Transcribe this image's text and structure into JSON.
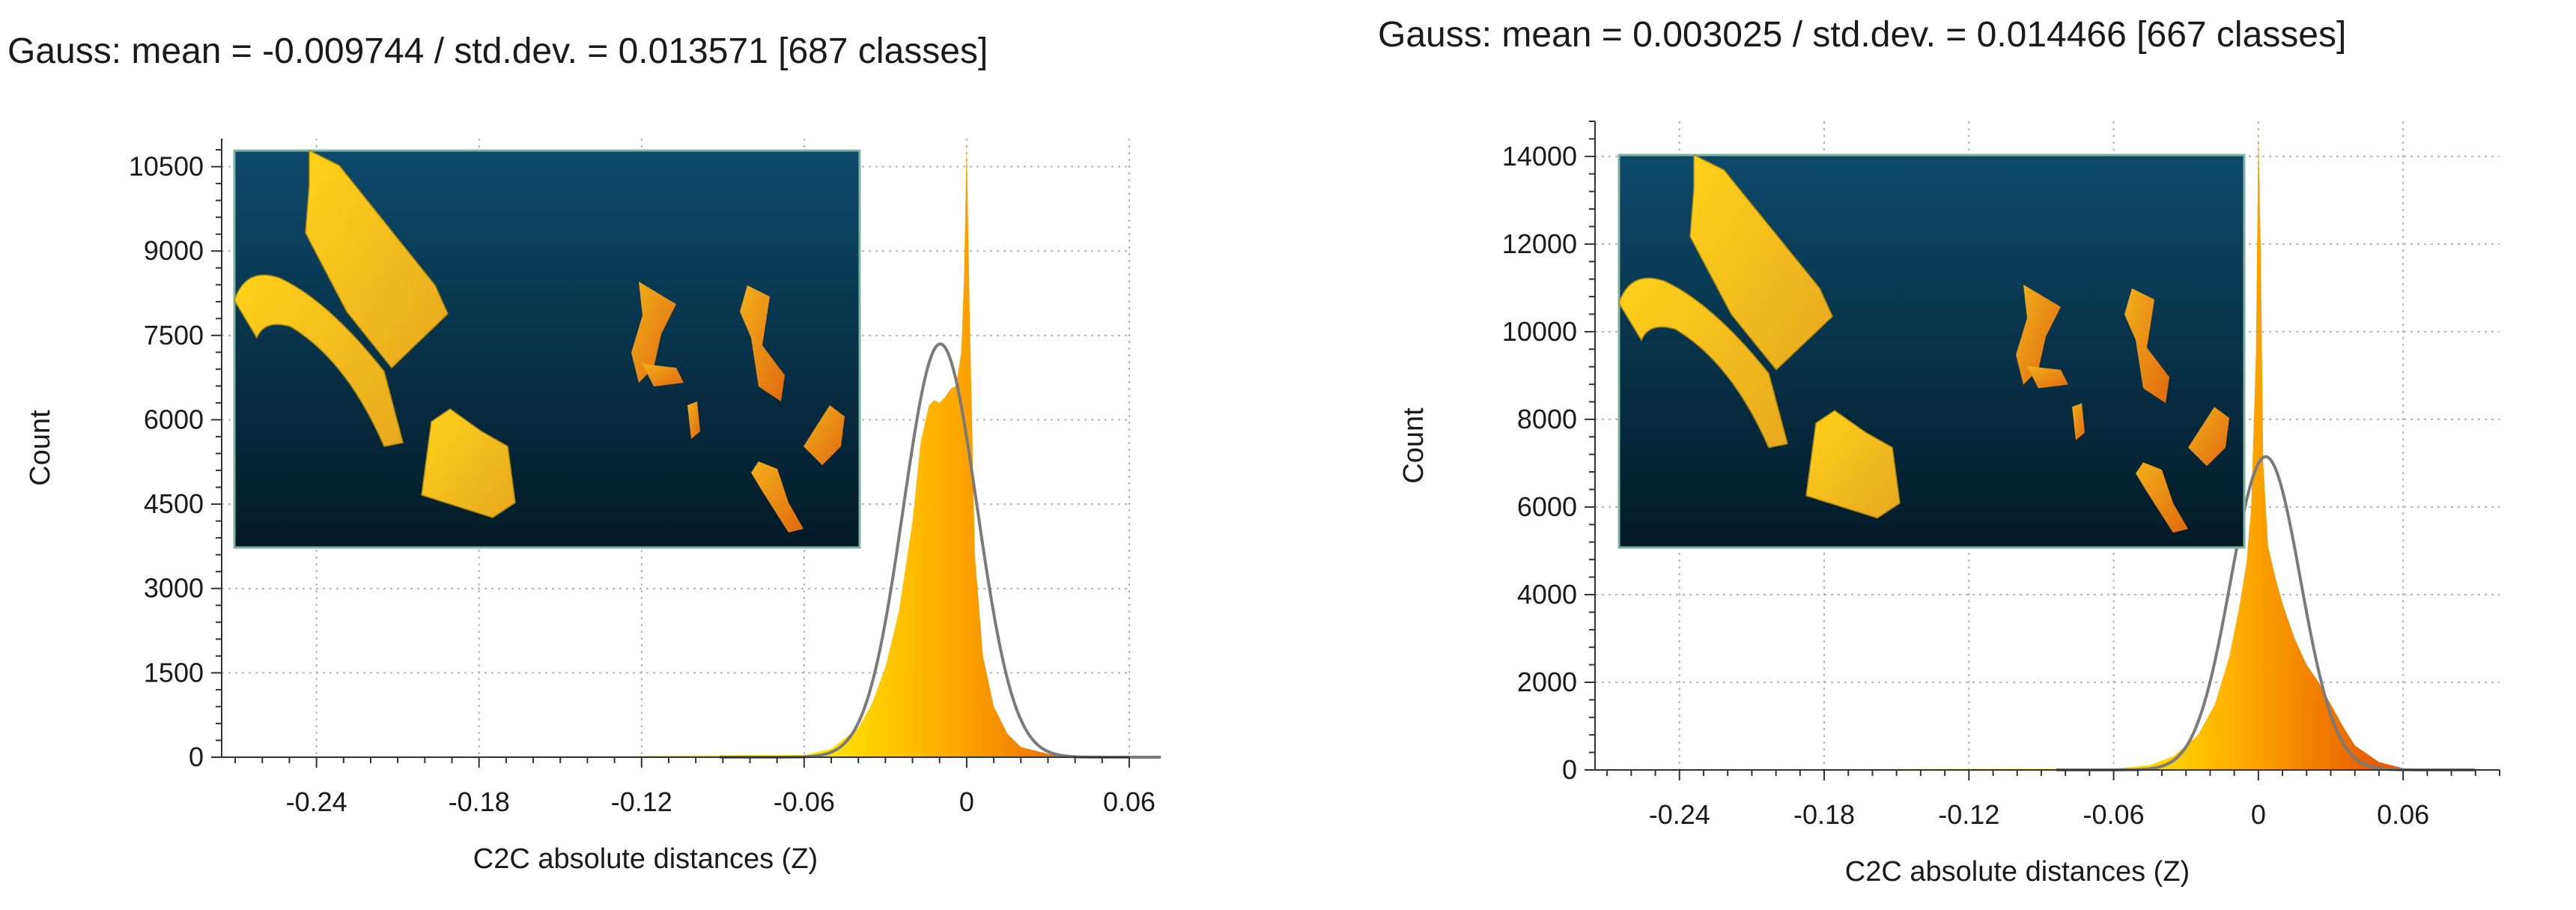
{
  "colors": {
    "background": "#ffffff",
    "grid": "#b4b4b4",
    "axis": "#333333",
    "gauss_curve": "#7a7a7a",
    "histogram_low": "#ffee00",
    "histogram_mid": "#ffb000",
    "histogram_high": "#e65a00",
    "inset_bg_top": "#0d4a6b",
    "inset_bg_bottom": "#031a26",
    "inset_frame": "#7fb3a0",
    "inset_shapes": "#f2c11a"
  },
  "chart_data": [
    {
      "type": "area",
      "title": "Gauss: mean = -0.009744 / std.dev. = 0.013571 [687 classes]",
      "xlabel": "C2C absolute distances (Z)",
      "ylabel": "Count",
      "xlim": [
        -0.275,
        0.06
      ],
      "ylim": [
        0,
        11000
      ],
      "xticks": [
        -0.24,
        -0.18,
        -0.12,
        -0.06,
        0,
        0.06
      ],
      "xtick_labels": [
        "-0.24",
        "-0.18",
        "-0.12",
        "-0.06",
        "0",
        "0.06"
      ],
      "yticks": [
        0,
        1500,
        3000,
        4500,
        6000,
        7500,
        9000,
        10500
      ],
      "ytick_labels": [
        "0",
        "1500",
        "3000",
        "4500",
        "6000",
        "7500",
        "9000",
        "10500"
      ],
      "grid": true,
      "inset_image": "point cloud thumbnail",
      "series": [
        {
          "x": [
            -0.275,
            -0.06,
            -0.05,
            -0.04,
            -0.035,
            -0.03,
            -0.025,
            -0.02,
            -0.017,
            -0.014,
            -0.012,
            -0.01,
            -0.008,
            -0.006,
            -0.004,
            -0.002,
            -0.001,
            0,
            0.001,
            0.003,
            0.006,
            0.01,
            0.015,
            0.02,
            0.03,
            0.04,
            0.06
          ],
          "y": [
            0,
            40,
            150,
            520,
            950,
            1600,
            2600,
            4200,
            5600,
            6250,
            6350,
            6300,
            6400,
            6550,
            6600,
            7200,
            8500,
            10900,
            8200,
            3600,
            1800,
            900,
            420,
            180,
            60,
            15,
            0
          ]
        },
        {
          "name": "Gauss",
          "function": "gaussian",
          "mean": -0.009744,
          "std": 0.013571,
          "peak": 7350
        }
      ]
    },
    {
      "type": "area",
      "title": "Gauss: mean = 0.003025 / std.dev. = 0.014466 [667 classes]",
      "xlabel": "C2C absolute distances (Z)",
      "ylabel": "Count",
      "xlim": [
        -0.275,
        0.1
      ],
      "ylim": [
        0,
        14800
      ],
      "xticks": [
        -0.24,
        -0.18,
        -0.12,
        -0.06,
        0,
        0.06
      ],
      "xtick_labels": [
        "-0.24",
        "-0.18",
        "-0.12",
        "-0.06",
        "0",
        "0.06"
      ],
      "yticks": [
        0,
        2000,
        4000,
        6000,
        8000,
        10000,
        12000,
        14000
      ],
      "ytick_labels": [
        "0",
        "2000",
        "4000",
        "6000",
        "8000",
        "10000",
        "12000",
        "14000"
      ],
      "grid": true,
      "inset_image": "point cloud thumbnail",
      "series": [
        {
          "x": [
            -0.275,
            -0.06,
            -0.045,
            -0.035,
            -0.025,
            -0.018,
            -0.012,
            -0.008,
            -0.005,
            -0.003,
            -0.001,
            0,
            0.001,
            0.002,
            0.004,
            0.007,
            0.01,
            0.015,
            0.02,
            0.025,
            0.03,
            0.035,
            0.04,
            0.05,
            0.06,
            0.1
          ],
          "y": [
            0,
            30,
            110,
            320,
            800,
            1500,
            2600,
            3700,
            4700,
            6000,
            9500,
            14600,
            11800,
            7000,
            5100,
            4400,
            3800,
            3000,
            2400,
            2000,
            1500,
            1000,
            560,
            180,
            40,
            0
          ]
        },
        {
          "name": "Gauss",
          "function": "gaussian",
          "mean": 0.003025,
          "std": 0.014466,
          "peak": 7150
        }
      ]
    }
  ]
}
